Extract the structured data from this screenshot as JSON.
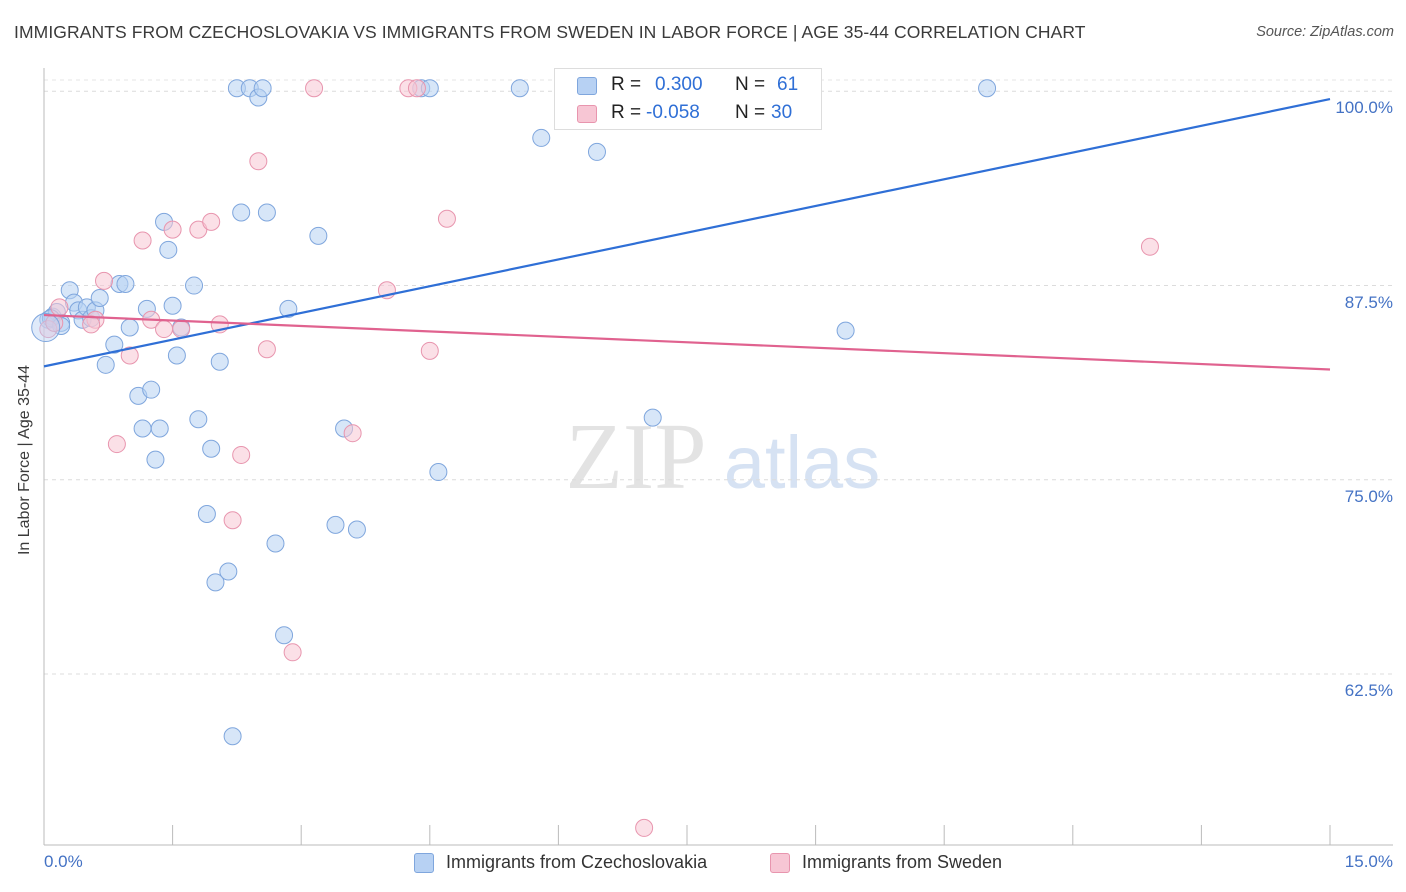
{
  "title": "IMMIGRANTS FROM CZECHOSLOVAKIA VS IMMIGRANTS FROM SWEDEN IN LABOR FORCE | AGE 35-44 CORRELATION CHART",
  "source": "Source: ZipAtlas.com",
  "watermark": {
    "zip": "ZIP",
    "atlas": "atlas"
  },
  "legend": {
    "r_label": "R =",
    "n_label": "N =",
    "series1": {
      "r": "0.300",
      "n": "61"
    },
    "series2": {
      "r": "-0.058",
      "n": "30"
    }
  },
  "chart_data": {
    "type": "scatter",
    "title": "IMMIGRANTS FROM CZECHOSLOVAKIA VS IMMIGRANTS FROM SWEDEN IN LABOR FORCE | AGE 35-44 CORRELATION CHART",
    "xlabel": "",
    "ylabel": "In Labor Force | Age 35-44",
    "xlim": [
      0,
      15
    ],
    "ylim": [
      51.5,
      101.5
    ],
    "x_tick_labels": [
      "0.0%",
      "15.0%"
    ],
    "y_ticks": [
      {
        "value": 62.5,
        "label": "62.5%"
      },
      {
        "value": 75.0,
        "label": "75.0%"
      },
      {
        "value": 87.5,
        "label": "87.5%"
      },
      {
        "value": 100.0,
        "label": "100.0%"
      }
    ],
    "grid": true,
    "legend_position": "top-center",
    "series": [
      {
        "name": "Immigrants from Czechoslovakia",
        "color": "#7fa6dd",
        "fill": "#b7d1f3",
        "line_color": "#2f6fd6",
        "trend": {
          "x": [
            0,
            15
          ],
          "y": [
            82.3,
            99.5
          ]
        },
        "points": [
          {
            "x": 0.05,
            "y": 85.3
          },
          {
            "x": 0.1,
            "y": 85.5
          },
          {
            "x": 0.15,
            "y": 85.8
          },
          {
            "x": 0.2,
            "y": 85.1
          },
          {
            "x": 0.3,
            "y": 87.2
          },
          {
            "x": 0.35,
            "y": 86.4
          },
          {
            "x": 0.4,
            "y": 85.9
          },
          {
            "x": 0.45,
            "y": 85.3
          },
          {
            "x": 0.5,
            "y": 86.1
          },
          {
            "x": 0.55,
            "y": 85.4
          },
          {
            "x": 0.6,
            "y": 85.9
          },
          {
            "x": 0.65,
            "y": 86.7
          },
          {
            "x": 0.72,
            "y": 82.4
          },
          {
            "x": 0.82,
            "y": 83.7
          },
          {
            "x": 0.88,
            "y": 87.6
          },
          {
            "x": 0.95,
            "y": 87.6
          },
          {
            "x": 1.0,
            "y": 84.8
          },
          {
            "x": 1.1,
            "y": 80.4
          },
          {
            "x": 1.15,
            "y": 78.3
          },
          {
            "x": 1.2,
            "y": 86.0
          },
          {
            "x": 1.25,
            "y": 80.8
          },
          {
            "x": 1.3,
            "y": 76.3
          },
          {
            "x": 1.35,
            "y": 78.3
          },
          {
            "x": 1.4,
            "y": 91.6
          },
          {
            "x": 1.45,
            "y": 89.8
          },
          {
            "x": 1.5,
            "y": 86.2
          },
          {
            "x": 1.55,
            "y": 83.0
          },
          {
            "x": 1.6,
            "y": 84.8
          },
          {
            "x": 1.75,
            "y": 87.5
          },
          {
            "x": 1.8,
            "y": 78.9
          },
          {
            "x": 1.9,
            "y": 72.8
          },
          {
            "x": 1.95,
            "y": 77.0
          },
          {
            "x": 2.0,
            "y": 68.4
          },
          {
            "x": 2.05,
            "y": 82.6
          },
          {
            "x": 2.15,
            "y": 69.1
          },
          {
            "x": 2.2,
            "y": 58.5
          },
          {
            "x": 2.25,
            "y": 100.2
          },
          {
            "x": 2.3,
            "y": 92.2
          },
          {
            "x": 2.4,
            "y": 100.2
          },
          {
            "x": 2.5,
            "y": 99.6
          },
          {
            "x": 2.55,
            "y": 100.2
          },
          {
            "x": 2.6,
            "y": 92.2
          },
          {
            "x": 2.7,
            "y": 70.9
          },
          {
            "x": 2.8,
            "y": 65.0
          },
          {
            "x": 2.85,
            "y": 86.0
          },
          {
            "x": 3.2,
            "y": 90.7
          },
          {
            "x": 3.4,
            "y": 72.1
          },
          {
            "x": 3.5,
            "y": 78.3
          },
          {
            "x": 3.65,
            "y": 71.8
          },
          {
            "x": 4.4,
            "y": 100.2
          },
          {
            "x": 4.5,
            "y": 100.2
          },
          {
            "x": 4.6,
            "y": 75.5
          },
          {
            "x": 5.55,
            "y": 100.2
          },
          {
            "x": 5.8,
            "y": 97.0
          },
          {
            "x": 6.45,
            "y": 96.1
          },
          {
            "x": 7.1,
            "y": 79.0
          },
          {
            "x": 8.45,
            "y": 100.2
          },
          {
            "x": 9.35,
            "y": 84.6
          },
          {
            "x": 11.0,
            "y": 100.2
          },
          {
            "x": 0.08,
            "y": 85.4
          },
          {
            "x": 0.2,
            "y": 84.9
          }
        ]
      },
      {
        "name": "Immigrants from Sweden",
        "color": "#e895ae",
        "fill": "#f7c6d4",
        "line_color": "#e0628f",
        "trend": {
          "x": [
            0,
            15
          ],
          "y": [
            85.6,
            82.1
          ]
        },
        "points": [
          {
            "x": 0.05,
            "y": 84.7
          },
          {
            "x": 0.12,
            "y": 85.1
          },
          {
            "x": 0.18,
            "y": 86.1
          },
          {
            "x": 0.6,
            "y": 85.3
          },
          {
            "x": 0.7,
            "y": 87.8
          },
          {
            "x": 0.85,
            "y": 77.3
          },
          {
            "x": 1.0,
            "y": 83.0
          },
          {
            "x": 1.15,
            "y": 90.4
          },
          {
            "x": 1.25,
            "y": 85.3
          },
          {
            "x": 1.4,
            "y": 84.7
          },
          {
            "x": 1.5,
            "y": 91.1
          },
          {
            "x": 1.6,
            "y": 84.7
          },
          {
            "x": 1.8,
            "y": 91.1
          },
          {
            "x": 1.95,
            "y": 91.6
          },
          {
            "x": 2.05,
            "y": 85.0
          },
          {
            "x": 2.2,
            "y": 72.4
          },
          {
            "x": 2.3,
            "y": 76.6
          },
          {
            "x": 2.5,
            "y": 95.5
          },
          {
            "x": 2.6,
            "y": 83.4
          },
          {
            "x": 2.9,
            "y": 63.9
          },
          {
            "x": 3.15,
            "y": 100.2
          },
          {
            "x": 3.6,
            "y": 78.0
          },
          {
            "x": 4.0,
            "y": 87.2
          },
          {
            "x": 4.25,
            "y": 100.2
          },
          {
            "x": 4.35,
            "y": 100.2
          },
          {
            "x": 4.5,
            "y": 83.3
          },
          {
            "x": 4.7,
            "y": 91.8
          },
          {
            "x": 7.0,
            "y": 52.6
          },
          {
            "x": 12.9,
            "y": 90.0
          },
          {
            "x": 0.55,
            "y": 85.0
          }
        ]
      }
    ]
  }
}
